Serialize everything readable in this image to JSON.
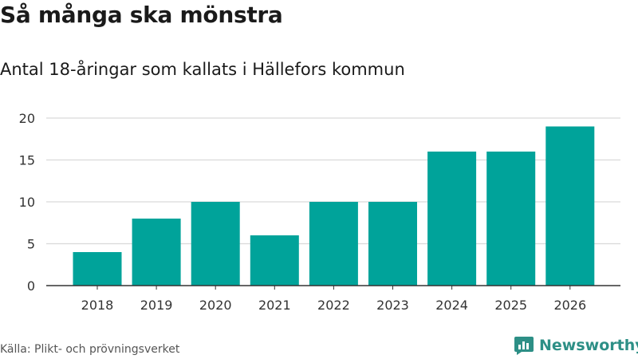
{
  "header": {
    "title": "Så många ska mönstra",
    "subtitle": "Antal 18-åringar som kallats i Hällefors kommun"
  },
  "footer": {
    "source": "Källa: Plikt- och prövningsverket",
    "brand": "Newsworthy",
    "brand_icon": "bar-chart-logo-icon"
  },
  "colors": {
    "bar": "#00a39a",
    "grid": "#d9d9d9",
    "axis": "#333333",
    "brand": "#2d8f86"
  },
  "chart_data": {
    "type": "bar",
    "title": "Antal 18-åringar som kallats i Hällefors kommun",
    "xlabel": "",
    "ylabel": "",
    "categories": [
      "2018",
      "2019",
      "2020",
      "2021",
      "2022",
      "2023",
      "2024",
      "2025",
      "2026"
    ],
    "values": [
      4,
      8,
      10,
      6,
      10,
      10,
      16,
      16,
      19
    ],
    "ylim": [
      0,
      20
    ],
    "yticks": [
      0,
      5,
      10,
      15,
      20
    ],
    "grid": true,
    "legend": "none"
  }
}
